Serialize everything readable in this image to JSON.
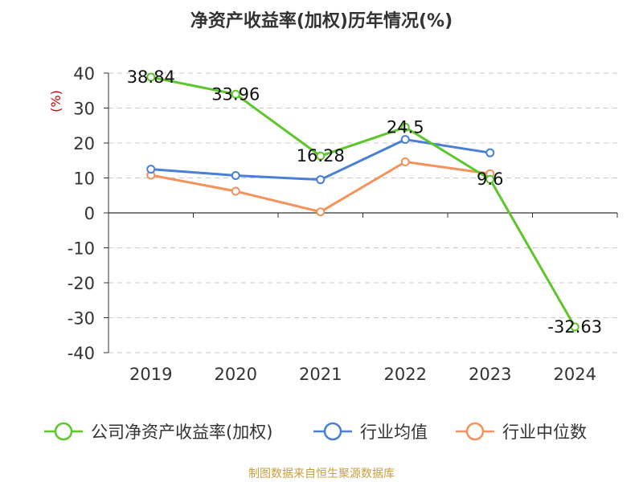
{
  "chart_data": {
    "type": "line",
    "title": "净资产收益率(加权)历年情况(%)",
    "ylabel": "(%)",
    "xlabel": "",
    "categories": [
      "2019",
      "2020",
      "2021",
      "2022",
      "2023",
      "2024"
    ],
    "ylim": [
      -40,
      40
    ],
    "yticks": [
      40,
      30,
      20,
      10,
      0,
      -10,
      -20,
      -30,
      -40
    ],
    "grid": true,
    "legend_position": "bottom",
    "series": [
      {
        "name": "公司净资产收益率(加权)",
        "color": "#5cc62b",
        "values": [
          38.84,
          33.96,
          16.28,
          24.5,
          9.6,
          -32.63
        ],
        "labels": [
          "38.84",
          "33.96",
          "16.28",
          "24.5",
          "9.6",
          "-32.63"
        ]
      },
      {
        "name": "行业均值",
        "color": "#4a7fd6",
        "values": [
          12.5,
          10.7,
          9.5,
          21.0,
          17.2,
          null
        ]
      },
      {
        "name": "行业中位数",
        "color": "#f5915a",
        "values": [
          10.8,
          6.2,
          0.3,
          14.6,
          11.2,
          null
        ]
      }
    ],
    "source": "制图数据来自恒生聚源数据库"
  }
}
